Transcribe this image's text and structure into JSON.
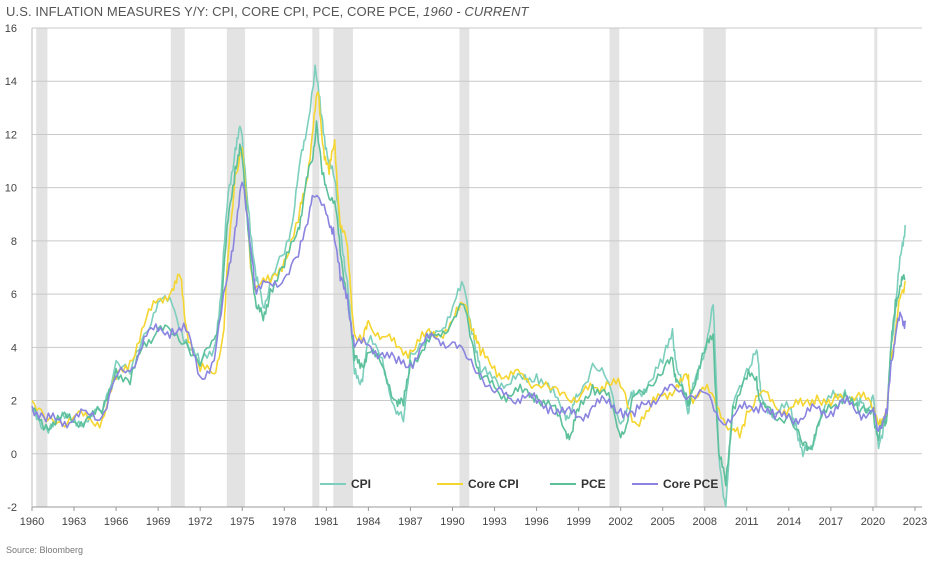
{
  "title": {
    "main": "U.S. INFLATION MEASURES Y/Y: CPI, CORE CPI, PCE, CORE PCE, ",
    "range": "1960 - CURRENT"
  },
  "source": "Source: Bloomberg",
  "chart_data": {
    "type": "line",
    "title": "U.S. INFLATION MEASURES Y/Y: CPI, CORE CPI, PCE, CORE PCE, 1960 - CURRENT",
    "xlabel": "",
    "ylabel": "",
    "xlim": [
      1960,
      2023.5
    ],
    "ylim": [
      -2,
      16
    ],
    "x_ticks": [
      1960,
      1963,
      1966,
      1969,
      1972,
      1975,
      1978,
      1981,
      1984,
      1987,
      1990,
      1993,
      1996,
      1999,
      2002,
      2005,
      2008,
      2011,
      2014,
      2017,
      2020,
      2023
    ],
    "y_ticks": [
      -2,
      0,
      2,
      4,
      6,
      8,
      10,
      12,
      14,
      16
    ],
    "grid": "horizontal",
    "legend_position": "bottom-center",
    "recessions": [
      [
        1960.3,
        1961.1
      ],
      [
        1969.9,
        1970.9
      ],
      [
        1973.9,
        1975.2
      ],
      [
        1980.0,
        1980.5
      ],
      [
        1981.5,
        1982.9
      ],
      [
        1990.5,
        1991.2
      ],
      [
        2001.2,
        2001.9
      ],
      [
        2007.9,
        2009.5
      ],
      [
        2020.1,
        2020.3
      ]
    ],
    "series": [
      {
        "name": "CPI",
        "color": "#7dcfbd",
        "x": [
          1960,
          1961,
          1962,
          1963,
          1964,
          1965,
          1966,
          1967,
          1968,
          1969,
          1970,
          1971,
          1972,
          1973,
          1973.5,
          1974,
          1974.5,
          1974.9,
          1975.5,
          1976,
          1976.5,
          1977,
          1978,
          1978.5,
          1979,
          1979.5,
          1980.2,
          1980.6,
          1981,
          1981.5,
          1982,
          1982.5,
          1983,
          1983.5,
          1984,
          1985,
          1986,
          1986.5,
          1987,
          1988,
          1989,
          1990,
          1990.8,
          1991.5,
          1992,
          1993,
          1994,
          1995,
          1996,
          1997,
          1998,
          1998.5,
          1999,
          2000,
          2001,
          2001.9,
          2002.5,
          2003,
          2004,
          2005,
          2005.7,
          2006,
          2006.8,
          2007,
          2007.5,
          2008,
          2008.6,
          2009,
          2009.5,
          2010,
          2011,
          2011.7,
          2012,
          2013,
          2014,
          2014.5,
          2015,
          2015.5,
          2016,
          2017,
          2018,
          2019,
          2019.5,
          2020,
          2020.4,
          2020.8,
          2021,
          2021.3,
          2021.6,
          2022,
          2022.3
        ],
        "y": [
          1.7,
          1.0,
          1.2,
          1.4,
          1.2,
          1.6,
          3.5,
          3.0,
          4.5,
          5.7,
          5.6,
          4.3,
          3.3,
          4.0,
          6.0,
          9.8,
          11.5,
          12.2,
          9.0,
          6.5,
          5.5,
          6.5,
          7.5,
          8.5,
          10.5,
          11.8,
          14.6,
          12.8,
          11.5,
          10.5,
          8.5,
          6.5,
          3.0,
          2.8,
          4.2,
          3.6,
          1.5,
          1.2,
          3.8,
          4.1,
          4.6,
          5.5,
          6.3,
          4.5,
          3.0,
          2.9,
          2.6,
          2.8,
          3.0,
          2.3,
          1.6,
          1.5,
          2.2,
          3.4,
          2.8,
          1.2,
          1.8,
          2.2,
          2.7,
          3.4,
          4.7,
          3.2,
          1.5,
          2.4,
          2.8,
          4.0,
          5.6,
          0.0,
          -2.0,
          1.8,
          3.2,
          3.9,
          2.2,
          1.5,
          1.7,
          1.2,
          -0.1,
          0.2,
          1.0,
          2.1,
          2.4,
          1.8,
          1.7,
          2.2,
          0.2,
          1.2,
          1.4,
          4.2,
          5.4,
          7.5,
          8.6
        ]
      },
      {
        "name": "Core CPI",
        "color": "#f5d631",
        "x": [
          1960,
          1961,
          1962,
          1963,
          1964,
          1965,
          1966,
          1967,
          1968,
          1969,
          1970,
          1970.6,
          1971,
          1972,
          1973,
          1973.7,
          1974,
          1974.5,
          1975,
          1975.6,
          1976,
          1977,
          1978,
          1979,
          1979.5,
          1980,
          1980.4,
          1980.8,
          1981.2,
          1981.6,
          1982,
          1982.5,
          1983,
          1983.6,
          1984,
          1985,
          1986,
          1987,
          1988,
          1989,
          1990,
          1990.9,
          1991.5,
          1992,
          1993,
          1994,
          1995,
          1996,
          1997,
          1998,
          1999,
          2000,
          2001,
          2002,
          2003,
          2004,
          2005,
          2006,
          2006.8,
          2007,
          2008,
          2009,
          2010,
          2010.5,
          2011,
          2012,
          2013,
          2014,
          2015,
          2016,
          2017,
          2018,
          2019,
          2020,
          2020.5,
          2021,
          2021.3,
          2021.6,
          2022,
          2022.3
        ],
        "y": [
          2.0,
          1.2,
          1.2,
          1.4,
          1.3,
          1.3,
          2.8,
          3.5,
          4.8,
          5.8,
          6.2,
          6.6,
          4.8,
          3.1,
          3.0,
          4.7,
          7.5,
          10.5,
          11.5,
          7.0,
          6.3,
          6.4,
          7.3,
          8.7,
          10.0,
          12.0,
          13.6,
          11.5,
          10.5,
          11.8,
          8.5,
          7.8,
          4.5,
          4.2,
          5.0,
          4.4,
          4.0,
          3.9,
          4.4,
          4.5,
          5.0,
          5.6,
          4.7,
          3.7,
          3.3,
          2.8,
          3.0,
          2.6,
          2.4,
          2.3,
          2.0,
          2.5,
          2.7,
          2.5,
          1.2,
          1.6,
          2.2,
          2.6,
          2.8,
          2.2,
          2.4,
          1.7,
          0.9,
          0.6,
          1.6,
          2.3,
          1.8,
          1.7,
          1.8,
          2.2,
          1.8,
          2.2,
          2.3,
          1.6,
          1.3,
          1.4,
          3.8,
          4.5,
          6.0,
          6.5
        ]
      },
      {
        "name": "PCE",
        "color": "#5cc09b",
        "x": [
          1960,
          1961,
          1962,
          1963,
          1964,
          1965,
          1966,
          1967,
          1968,
          1969,
          1970,
          1971,
          1972,
          1973,
          1973.5,
          1974,
          1974.5,
          1974.9,
          1975.5,
          1976,
          1976.5,
          1977,
          1978,
          1979,
          1979.5,
          1980,
          1980.3,
          1980.7,
          1981,
          1981.6,
          1982,
          1982.5,
          1983,
          1983.5,
          1984,
          1985,
          1986,
          1986.5,
          1987,
          1988,
          1989,
          1990,
          1990.8,
          1991.5,
          1992,
          1993,
          1994,
          1995,
          1996,
          1997,
          1998,
          1998.5,
          1999,
          2000,
          2001,
          2001.9,
          2002.5,
          2003,
          2004,
          2005,
          2005.7,
          2006,
          2006.8,
          2007,
          2008,
          2008.6,
          2009,
          2009.5,
          2010,
          2011,
          2011.7,
          2012,
          2013,
          2014,
          2015,
          2015.5,
          2016,
          2017,
          2018,
          2019,
          2020,
          2020.4,
          2020.8,
          2021,
          2021.3,
          2021.6,
          2022,
          2022.3
        ],
        "y": [
          1.6,
          1.1,
          1.3,
          1.2,
          1.4,
          1.5,
          3.2,
          2.6,
          4.2,
          4.7,
          4.5,
          4.2,
          3.3,
          4.3,
          5.5,
          8.8,
          10.8,
          11.5,
          8.0,
          5.5,
          5.0,
          6.2,
          7.0,
          8.5,
          10.0,
          11.0,
          12.5,
          10.5,
          10.0,
          9.5,
          7.5,
          6.0,
          3.5,
          3.4,
          3.8,
          3.3,
          2.0,
          1.8,
          3.5,
          3.9,
          4.5,
          5.0,
          5.6,
          4.0,
          2.8,
          2.5,
          2.2,
          2.3,
          2.2,
          1.8,
          0.9,
          0.8,
          1.6,
          2.6,
          2.2,
          0.8,
          1.2,
          2.2,
          2.6,
          3.0,
          3.6,
          2.8,
          1.8,
          2.3,
          3.8,
          4.5,
          0.0,
          -1.2,
          1.8,
          2.8,
          2.9,
          1.8,
          1.3,
          1.5,
          0.3,
          0.2,
          1.0,
          1.7,
          2.3,
          1.5,
          1.7,
          0.5,
          1.2,
          1.5,
          4.0,
          5.8,
          6.3,
          6.6
        ]
      },
      {
        "name": "Core PCE",
        "color": "#8a84e0",
        "x": [
          1960,
          1961,
          1962,
          1963,
          1964,
          1965,
          1966,
          1967,
          1968,
          1969,
          1970,
          1971,
          1972,
          1973,
          1974,
          1974.5,
          1975,
          1975.8,
          1976,
          1977,
          1978,
          1979,
          1979.5,
          1980,
          1981,
          1981.5,
          1982,
          1982.5,
          1983,
          1984,
          1985,
          1986,
          1987,
          1988,
          1989,
          1990,
          1991,
          1992,
          1993,
          1994,
          1995,
          1996,
          1997,
          1998,
          1999,
          2000,
          2001,
          2002,
          2003,
          2004,
          2005,
          2006,
          2007,
          2008,
          2009,
          2010,
          2011,
          2012,
          2013,
          2014,
          2015,
          2016,
          2017,
          2018,
          2019,
          2020,
          2020.3,
          2020.8,
          2021,
          2021.3,
          2021.6,
          2022,
          2022.3
        ],
        "y": [
          1.8,
          1.2,
          1.3,
          1.3,
          1.5,
          1.4,
          2.9,
          3.1,
          4.4,
          4.6,
          4.7,
          4.6,
          2.9,
          3.5,
          6.8,
          8.5,
          10.2,
          7.0,
          6.0,
          6.4,
          6.6,
          7.4,
          8.5,
          9.7,
          9.0,
          8.5,
          6.5,
          6.0,
          4.0,
          4.1,
          3.8,
          3.4,
          3.4,
          4.2,
          4.3,
          4.2,
          3.6,
          3.0,
          2.3,
          2.1,
          2.2,
          1.9,
          1.8,
          1.5,
          1.4,
          1.8,
          1.9,
          1.7,
          1.4,
          2.0,
          2.3,
          2.4,
          2.2,
          2.3,
          1.3,
          1.4,
          1.7,
          1.9,
          1.3,
          1.5,
          1.3,
          1.7,
          1.6,
          1.9,
          1.6,
          1.6,
          0.9,
          1.4,
          1.5,
          3.5,
          4.4,
          5.2,
          5.0
        ]
      }
    ]
  }
}
